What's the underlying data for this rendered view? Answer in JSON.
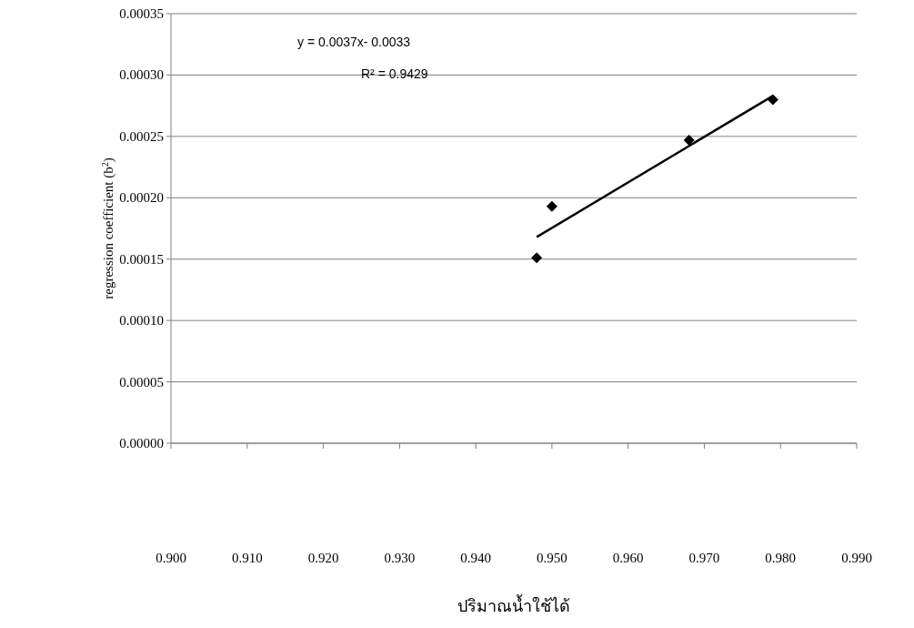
{
  "chart_data": {
    "type": "scatter",
    "xlabel": "ปริมาณน้ำใช้ได้",
    "ylabel": "regression coefficient (b$^{2}$)",
    "series": [
      {
        "color": "#000000",
        "marker": "diamond",
        "x": [
          0.948,
          0.95,
          0.968,
          0.979
        ],
        "values": [
          0.000151,
          0.000193,
          0.000247,
          0.00028
        ]
      },
      {
        "type": "line",
        "color": "#000000",
        "x": [
          0.948,
          0.979
        ],
        "values": [
          0.000168,
          0.000283
        ]
      }
    ],
    "annotations": [
      "y = 0.0037x- 0.0033",
      "R² = 0.9429"
    ],
    "xlim": [
      0.9,
      0.99
    ],
    "xticks": [
      {
        "value": 0.9,
        "label": "0.900"
      },
      {
        "value": 0.91,
        "label": "0.910"
      },
      {
        "value": 0.92,
        "label": "0.920"
      },
      {
        "value": 0.93,
        "label": "0.930"
      },
      {
        "value": 0.94,
        "label": "0.940"
      },
      {
        "value": 0.95,
        "label": "0.950"
      },
      {
        "value": 0.96,
        "label": "0.960"
      },
      {
        "value": 0.97,
        "label": "0.970"
      },
      {
        "value": 0.98,
        "label": "0.980"
      },
      {
        "value": 0.99,
        "label": "0.990"
      }
    ],
    "ylim": [
      0,
      0.00035
    ],
    "yticks": [
      {
        "value": 0,
        "label": "0.00000"
      },
      {
        "value": 5e-05,
        "label": "0.00005"
      },
      {
        "value": 0.0001,
        "label": "0.00010"
      },
      {
        "value": 0.00015,
        "label": "0.00015"
      },
      {
        "value": 0.0002,
        "label": "0.00020"
      },
      {
        "value": 0.00025,
        "label": "0.00025"
      },
      {
        "value": 0.0003,
        "label": "0.00030"
      },
      {
        "value": 0.00035,
        "label": "0.00035"
      }
    ],
    "grid": "y"
  }
}
